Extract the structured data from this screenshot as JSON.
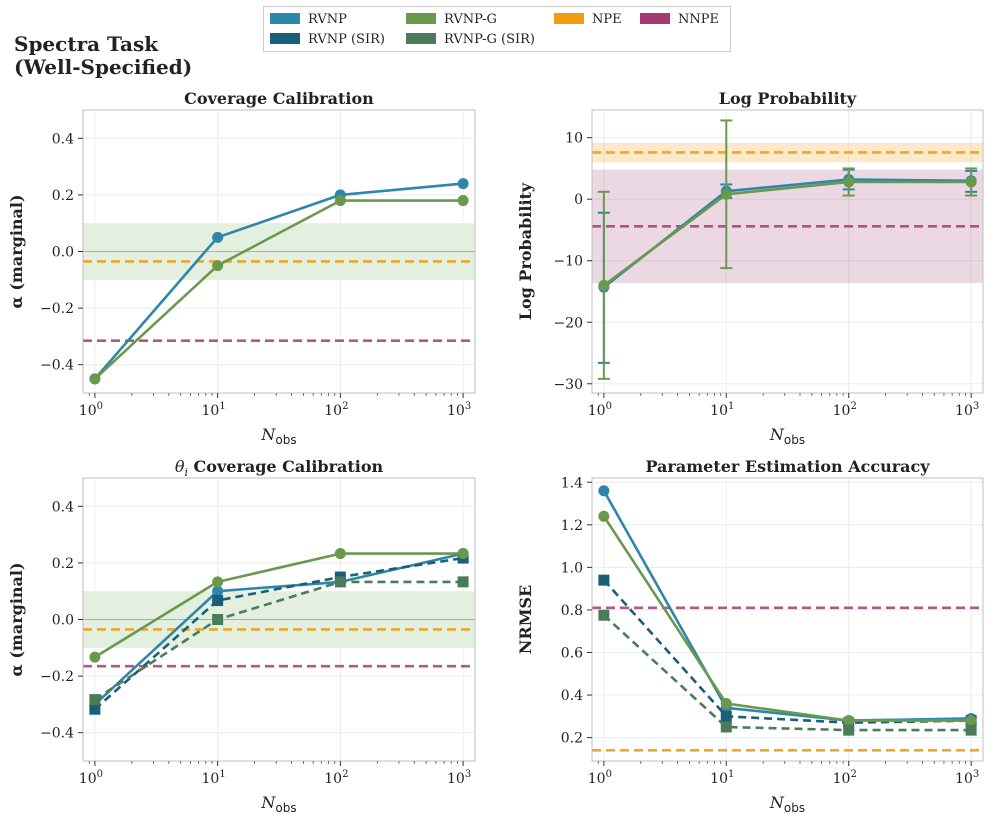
{
  "figure_title": "Spectra Task\n(Well-Specified)",
  "colors": {
    "rvnp": "#2e86ab",
    "rvnp_sir": "#1a5f7a",
    "rvnpg": "#6a994e",
    "rvnpg_sir": "#4a7c59",
    "npe": "#f39c12",
    "nnpe": "#a23b72",
    "band": "#e3efdf"
  },
  "legend": [
    {
      "label": "RVNP",
      "color": "#2e86ab"
    },
    {
      "label": "RVNP (SIR)",
      "color": "#1a5f7a"
    },
    {
      "label": "RVNP-G",
      "color": "#6a994e"
    },
    {
      "label": "RVNP-G (SIR)",
      "color": "#4a7c59"
    },
    {
      "label": "NPE",
      "color": "#f39c12"
    },
    {
      "label": "NNPE",
      "color": "#a23b72"
    }
  ],
  "chart_data": [
    {
      "type": "line",
      "title": "Coverage Calibration",
      "xlabel": "N_obs",
      "ylabel": "α (marginal)",
      "xscale": "log",
      "xlim": [
        0.8,
        1250
      ],
      "ylim": [
        -0.5,
        0.5
      ],
      "yticks": [
        -0.4,
        -0.2,
        0.0,
        0.2,
        0.4
      ],
      "ytick_labels": [
        "−0.4",
        "−0.2",
        "0.0",
        "0.2",
        "0.4"
      ],
      "xticks": [
        1,
        10,
        100,
        1000
      ],
      "xtick_labels": [
        "10^0",
        "10^1",
        "10^2",
        "10^3"
      ],
      "grid": true,
      "band": [
        -0.1,
        0.1
      ],
      "reference_line": 0.0,
      "series": [
        {
          "name": "RVNP",
          "x": [
            1,
            10,
            100,
            1000
          ],
          "y": [
            -0.45,
            0.05,
            0.2,
            0.24
          ],
          "marker": "circle",
          "dash": false
        },
        {
          "name": "RVNP-G",
          "x": [
            1,
            10,
            100,
            1000
          ],
          "y": [
            -0.45,
            -0.05,
            0.18,
            0.18
          ],
          "marker": "circle",
          "dash": false
        }
      ],
      "hlines": [
        {
          "name": "NPE",
          "y": -0.035
        },
        {
          "name": "NNPE",
          "y": -0.315
        }
      ]
    },
    {
      "type": "line",
      "title": "Log Probability",
      "xlabel": "N_obs",
      "ylabel": "Log Probability",
      "xscale": "log",
      "xlim": [
        0.8,
        1250
      ],
      "ylim": [
        -31.5,
        14.5
      ],
      "yticks": [
        -30,
        -20,
        -10,
        0,
        10
      ],
      "ytick_labels": [
        "−30",
        "−20",
        "−10",
        "0",
        "10"
      ],
      "xticks": [
        1,
        10,
        100,
        1000
      ],
      "xtick_labels": [
        "10^0",
        "10^1",
        "10^2",
        "10^3"
      ],
      "grid": true,
      "series": [
        {
          "name": "RVNP",
          "x": [
            1,
            10,
            100,
            1000
          ],
          "y": [
            -14.3,
            1.3,
            3.2,
            3.0
          ],
          "err_low": [
            -26.6,
            0.2,
            1.6,
            1.2
          ],
          "err_high": [
            -2.2,
            2.4,
            4.8,
            4.6
          ],
          "marker": "circle",
          "dash": false
        },
        {
          "name": "RVNP-G",
          "x": [
            1,
            10,
            100,
            1000
          ],
          "y": [
            -14.0,
            0.8,
            2.8,
            2.8
          ],
          "err_low": [
            -29.2,
            -11.2,
            0.6,
            0.6
          ],
          "err_high": [
            1.2,
            12.8,
            5.0,
            5.0
          ],
          "marker": "circle",
          "dash": false
        }
      ],
      "hlines": [
        {
          "name": "NPE",
          "y": 7.6,
          "band": [
            6.0,
            9.2
          ]
        },
        {
          "name": "NNPE",
          "y": -4.4,
          "band": [
            -13.6,
            4.8
          ]
        }
      ]
    },
    {
      "type": "line",
      "title": "θ_i Coverage Calibration",
      "xlabel": "N_obs",
      "ylabel": "α (marginal)",
      "xscale": "log",
      "xlim": [
        0.8,
        1250
      ],
      "ylim": [
        -0.5,
        0.5
      ],
      "yticks": [
        -0.4,
        -0.2,
        0.0,
        0.2,
        0.4
      ],
      "ytick_labels": [
        "−0.4",
        "−0.2",
        "0.0",
        "0.2",
        "0.4"
      ],
      "xticks": [
        1,
        10,
        100,
        1000
      ],
      "xtick_labels": [
        "10^0",
        "10^1",
        "10^2",
        "10^3"
      ],
      "grid": true,
      "band": [
        -0.1,
        0.1
      ],
      "reference_line": 0.0,
      "series": [
        {
          "name": "RVNP",
          "x": [
            1,
            10,
            100,
            1000
          ],
          "y": [
            -0.3,
            0.1,
            0.133,
            0.233
          ],
          "marker": "circle",
          "dash": false
        },
        {
          "name": "RVNP (SIR)",
          "x": [
            1,
            10,
            100,
            1000
          ],
          "y": [
            -0.317,
            0.067,
            0.15,
            0.217
          ],
          "marker": "square",
          "dash": true
        },
        {
          "name": "RVNP-G",
          "x": [
            1,
            10,
            100,
            1000
          ],
          "y": [
            -0.133,
            0.133,
            0.233,
            0.233
          ],
          "marker": "circle",
          "dash": false
        },
        {
          "name": "RVNP-G (SIR)",
          "x": [
            1,
            10,
            100,
            1000
          ],
          "y": [
            -0.283,
            0.0,
            0.133,
            0.133
          ],
          "marker": "square",
          "dash": true
        }
      ],
      "hlines": [
        {
          "name": "NPE",
          "y": -0.035
        },
        {
          "name": "NNPE",
          "y": -0.165
        }
      ]
    },
    {
      "type": "line",
      "title": "Parameter Estimation Accuracy",
      "xlabel": "N_obs",
      "ylabel": "NRMSE",
      "xscale": "log",
      "xlim": [
        0.8,
        1250
      ],
      "ylim": [
        0.09,
        1.42
      ],
      "yticks": [
        0.2,
        0.4,
        0.6,
        0.8,
        1.0,
        1.2,
        1.4
      ],
      "ytick_labels": [
        "0.2",
        "0.4",
        "0.6",
        "0.8",
        "1.0",
        "1.2",
        "1.4"
      ],
      "xticks": [
        1,
        10,
        100,
        1000
      ],
      "xtick_labels": [
        "10^0",
        "10^1",
        "10^2",
        "10^3"
      ],
      "grid": true,
      "series": [
        {
          "name": "RVNP",
          "x": [
            1,
            10,
            100,
            1000
          ],
          "y": [
            1.36,
            0.34,
            0.28,
            0.29
          ],
          "marker": "circle",
          "dash": false
        },
        {
          "name": "RVNP (SIR)",
          "x": [
            1,
            10,
            100,
            1000
          ],
          "y": [
            0.94,
            0.3,
            0.27,
            0.28
          ],
          "marker": "square",
          "dash": true
        },
        {
          "name": "RVNP-G",
          "x": [
            1,
            10,
            100,
            1000
          ],
          "y": [
            1.24,
            0.36,
            0.28,
            0.28
          ],
          "marker": "circle",
          "dash": false
        },
        {
          "name": "RVNP-G (SIR)",
          "x": [
            1,
            10,
            100,
            1000
          ],
          "y": [
            0.775,
            0.25,
            0.235,
            0.235
          ],
          "marker": "square",
          "dash": true
        }
      ],
      "hlines": [
        {
          "name": "NPE",
          "y": 0.14
        },
        {
          "name": "NNPE",
          "y": 0.81
        }
      ]
    }
  ]
}
